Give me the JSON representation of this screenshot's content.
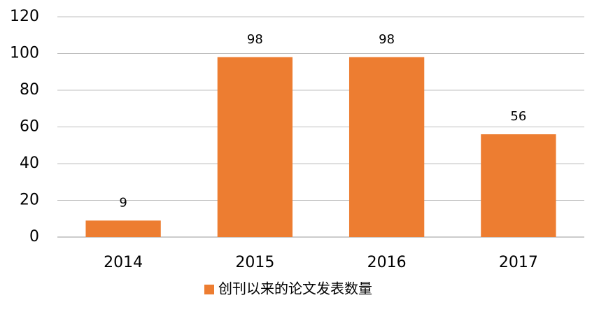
{
  "chart_data": {
    "type": "bar",
    "categories": [
      "2014",
      "2015",
      "2016",
      "2017"
    ],
    "series": [
      {
        "name": "创刊以来的论文发表数量",
        "color": "#ed7d31",
        "values": [
          9,
          98,
          98,
          56
        ]
      }
    ],
    "ylim": [
      0,
      120
    ],
    "yticks": [
      0,
      20,
      40,
      60,
      80,
      100,
      120
    ],
    "grid": true,
    "data_labels": true,
    "legend": "bottom"
  }
}
